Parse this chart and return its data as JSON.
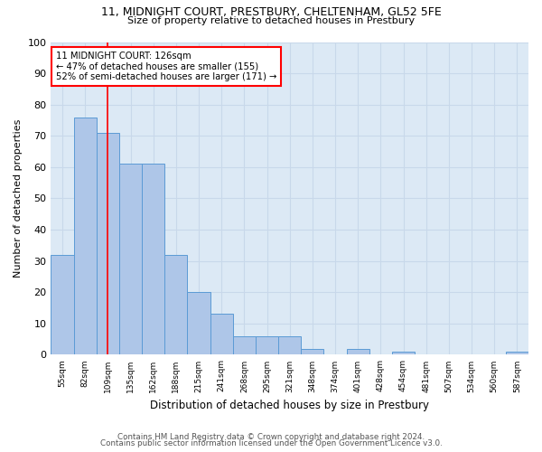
{
  "title1": "11, MIDNIGHT COURT, PRESTBURY, CHELTENHAM, GL52 5FE",
  "title2": "Size of property relative to detached houses in Prestbury",
  "xlabel": "Distribution of detached houses by size in Prestbury",
  "ylabel": "Number of detached properties",
  "bar_labels": [
    "55sqm",
    "82sqm",
    "109sqm",
    "135sqm",
    "162sqm",
    "188sqm",
    "215sqm",
    "241sqm",
    "268sqm",
    "295sqm",
    "321sqm",
    "348sqm",
    "374sqm",
    "401sqm",
    "428sqm",
    "454sqm",
    "481sqm",
    "507sqm",
    "534sqm",
    "560sqm",
    "587sqm"
  ],
  "bar_values": [
    32,
    76,
    71,
    61,
    61,
    32,
    20,
    13,
    6,
    6,
    6,
    2,
    0,
    2,
    0,
    1,
    0,
    0,
    0,
    0,
    1
  ],
  "bar_color": "#aec6e8",
  "bar_edge_color": "#5b9bd5",
  "annotation_text_line1": "11 MIDNIGHT COURT: 126sqm",
  "annotation_text_line2": "← 47% of detached houses are smaller (155)",
  "annotation_text_line3": "52% of semi-detached houses are larger (171) →",
  "annotation_box_color": "white",
  "annotation_box_edge_color": "red",
  "vline_x_index": 2,
  "vline_color": "red",
  "ylim": [
    0,
    100
  ],
  "yticks": [
    0,
    10,
    20,
    30,
    40,
    50,
    60,
    70,
    80,
    90,
    100
  ],
  "grid_color": "#c8d8ea",
  "background_color": "#dce9f5",
  "footer1": "Contains HM Land Registry data © Crown copyright and database right 2024.",
  "footer2": "Contains public sector information licensed under the Open Government Licence v3.0."
}
